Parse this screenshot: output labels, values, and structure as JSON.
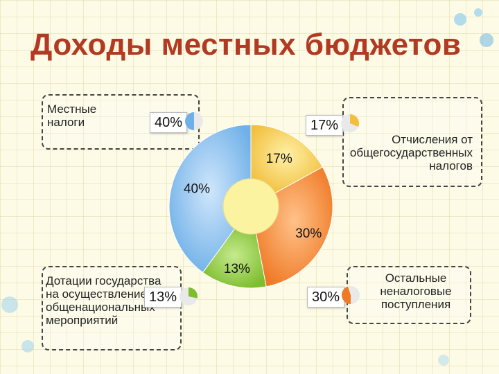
{
  "title": "Доходы местных бюджетов",
  "colors": {
    "title": "#b23a22",
    "local_taxes": "#8fc3ee",
    "transfers": "#f4c84a",
    "other": "#f28a3a",
    "grants": "#8cc63f",
    "center": "#fbf3a0"
  },
  "chart_data": {
    "type": "pie",
    "title": "Доходы местных бюджетов",
    "slices": [
      {
        "label": "Отчисления от общегосударственных налогов",
        "value": 17,
        "display": "17%"
      },
      {
        "label": "Остальные неналоговые поступления",
        "value": 30,
        "display": "30%"
      },
      {
        "label": "Дотации государства на осуществление общенациональных мероприятий",
        "value": 13,
        "display": "13%"
      },
      {
        "label": "Местные налоги",
        "value": 40,
        "display": "40%"
      }
    ]
  },
  "callouts": {
    "local_taxes": {
      "text": "Местные налоги",
      "badge": "40%"
    },
    "transfers": {
      "text": "Отчисления от общегосударственных налогов",
      "badge": "17%"
    },
    "grants": {
      "text": "Дотации государства на осуществление общенациональных мероприятий",
      "badge": "13%"
    },
    "other": {
      "text": "Остальные неналоговые поступления",
      "badge": "30%"
    }
  }
}
